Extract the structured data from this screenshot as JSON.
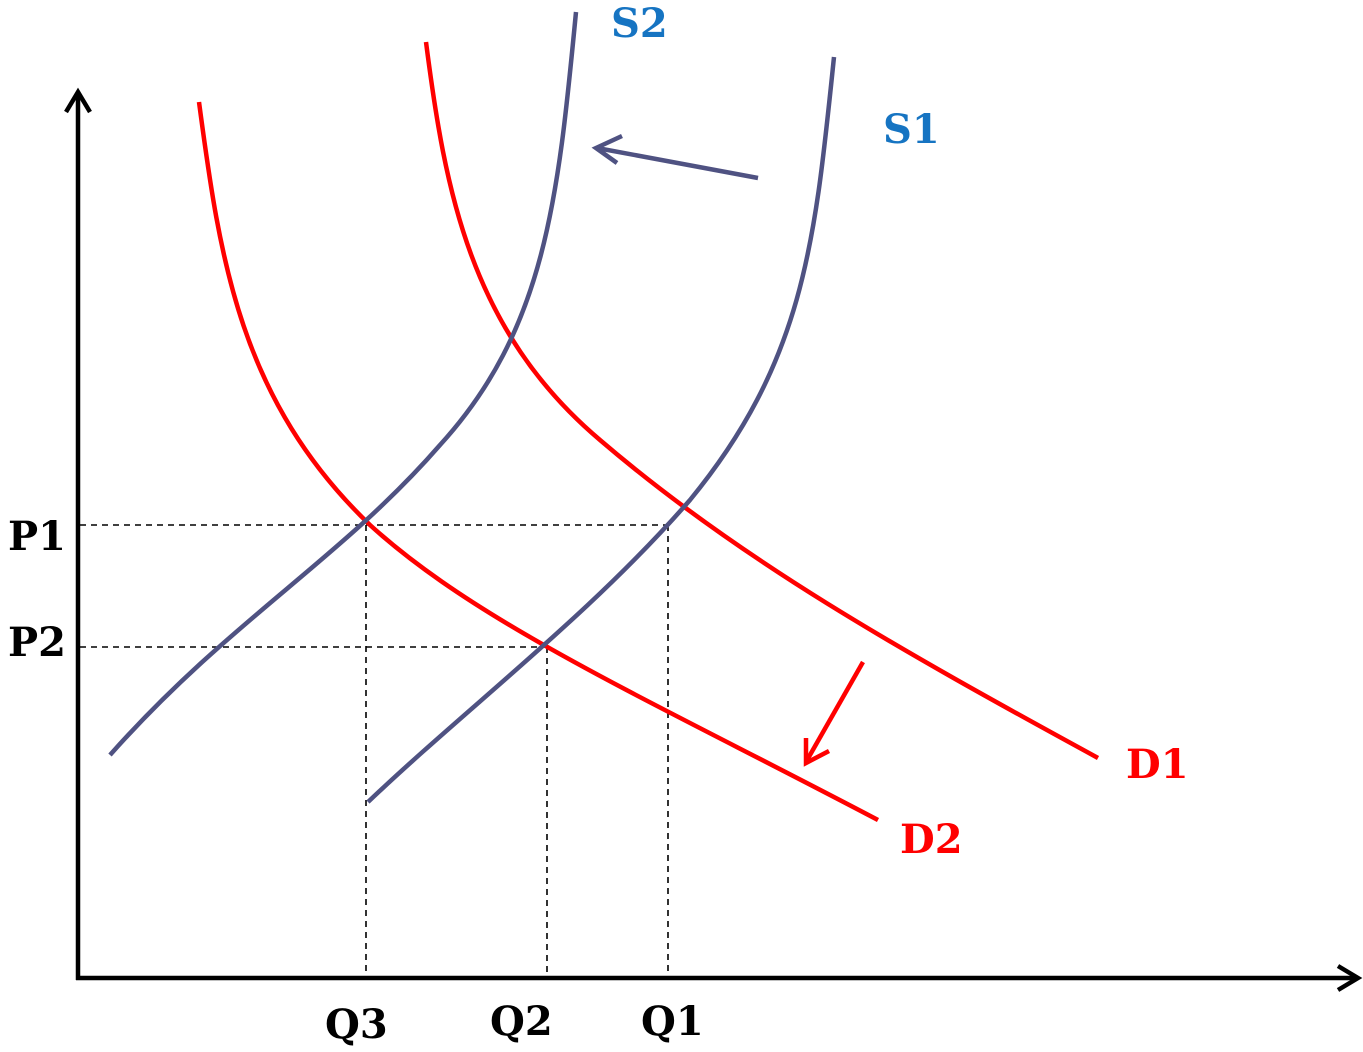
{
  "labels": {
    "s1": "S1",
    "s2": "S2",
    "d1": "D1",
    "d2": "D2",
    "p1": "P1",
    "p2": "P2",
    "q1": "Q1",
    "q2": "Q2",
    "q3": "Q3"
  },
  "colors": {
    "supply": "#4f5282",
    "demand": "#ff0000",
    "supply_label": "#1674c2",
    "demand_label": "#ff0000",
    "axis": "#000000",
    "guide": "#000000",
    "axis_label": "#000000"
  }
}
